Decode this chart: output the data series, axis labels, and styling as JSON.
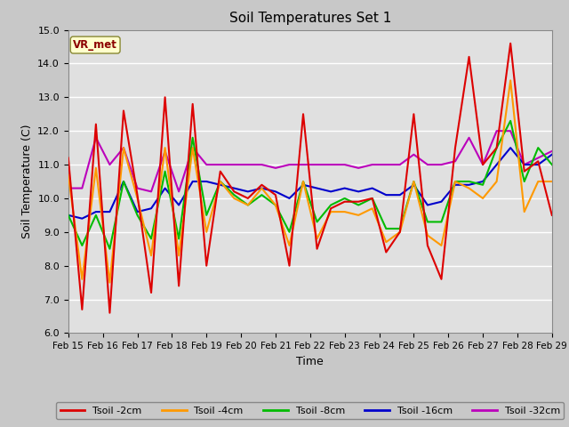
{
  "title": "Soil Temperatures Set 1",
  "xlabel": "Time",
  "ylabel": "Soil Temperature (C)",
  "ylim": [
    6.0,
    15.0
  ],
  "yticks": [
    6.0,
    7.0,
    8.0,
    9.0,
    10.0,
    11.0,
    12.0,
    13.0,
    14.0,
    15.0
  ],
  "vr_met_label": "VR_met",
  "legend_entries": [
    "Tsoil -2cm",
    "Tsoil -4cm",
    "Tsoil -8cm",
    "Tsoil -16cm",
    "Tsoil -32cm"
  ],
  "colors": {
    "2cm": "#dd0000",
    "4cm": "#ff9900",
    "8cm": "#00bb00",
    "16cm": "#0000cc",
    "32cm": "#bb00bb"
  },
  "x_labels": [
    "Feb 15",
    "Feb 16",
    "Feb 17",
    "Feb 18",
    "Feb 19",
    "Feb 20",
    "Feb 21",
    "Feb 22",
    "Feb 23",
    "Feb 24",
    "Feb 25",
    "Feb 26",
    "Feb 27",
    "Feb 28",
    "Feb 29"
  ],
  "tsoil_2cm": [
    11.2,
    6.7,
    12.2,
    6.6,
    12.6,
    10.1,
    7.2,
    13.0,
    7.4,
    12.8,
    8.0,
    10.8,
    10.2,
    10.0,
    10.4,
    10.1,
    8.0,
    12.5,
    8.5,
    9.7,
    9.9,
    9.9,
    10.0,
    8.4,
    9.0,
    12.5,
    8.6,
    7.6,
    11.5,
    14.2,
    11.0,
    11.5,
    14.6,
    10.8,
    11.1,
    9.5
  ],
  "tsoil_4cm": [
    10.7,
    7.6,
    10.9,
    7.5,
    11.5,
    10.0,
    8.3,
    11.5,
    8.3,
    11.5,
    9.0,
    10.5,
    10.0,
    9.8,
    10.3,
    9.8,
    8.6,
    10.5,
    8.8,
    9.6,
    9.6,
    9.5,
    9.7,
    8.7,
    9.0,
    10.5,
    8.9,
    8.6,
    10.5,
    10.3,
    10.0,
    10.5,
    13.5,
    9.6,
    10.5,
    10.5
  ],
  "tsoil_8cm": [
    9.5,
    8.6,
    9.5,
    8.5,
    10.5,
    9.5,
    8.8,
    10.8,
    8.8,
    11.8,
    9.5,
    10.5,
    10.1,
    9.8,
    10.1,
    9.8,
    9.0,
    10.5,
    9.3,
    9.8,
    10.0,
    9.8,
    10.0,
    9.1,
    9.1,
    10.5,
    9.3,
    9.3,
    10.5,
    10.5,
    10.4,
    11.5,
    12.3,
    10.5,
    11.5,
    11.0
  ],
  "tsoil_16cm": [
    9.5,
    9.4,
    9.6,
    9.6,
    10.5,
    9.6,
    9.7,
    10.3,
    9.8,
    10.5,
    10.5,
    10.4,
    10.3,
    10.2,
    10.3,
    10.2,
    10.0,
    10.4,
    10.3,
    10.2,
    10.3,
    10.2,
    10.3,
    10.1,
    10.1,
    10.4,
    9.8,
    9.9,
    10.4,
    10.4,
    10.5,
    11.0,
    11.5,
    11.0,
    11.0,
    11.3
  ],
  "tsoil_32cm": [
    10.3,
    10.3,
    11.8,
    11.0,
    11.5,
    10.3,
    10.2,
    11.4,
    10.2,
    11.5,
    11.0,
    11.0,
    11.0,
    11.0,
    11.0,
    10.9,
    11.0,
    11.0,
    11.0,
    11.0,
    11.0,
    10.9,
    11.0,
    11.0,
    11.0,
    11.3,
    11.0,
    11.0,
    11.1,
    11.8,
    11.0,
    12.0,
    12.0,
    11.0,
    11.2,
    11.4
  ]
}
